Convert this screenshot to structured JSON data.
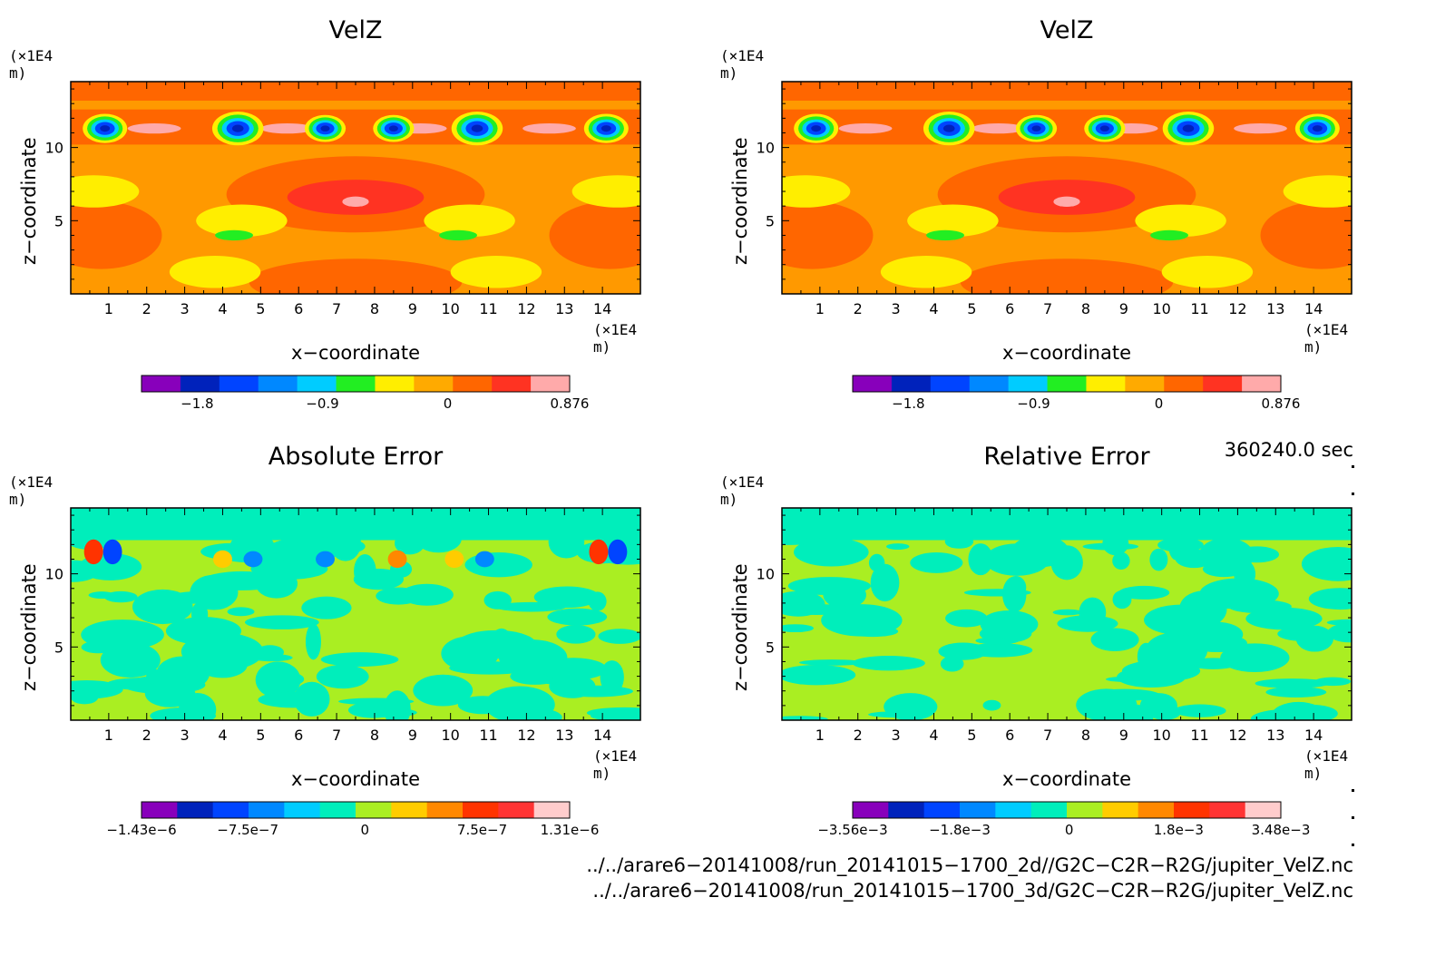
{
  "panels": [
    {
      "title": "VelZ",
      "xlabel": "x−coordinate",
      "ylabel": "z−coordinate",
      "xunit": "(×1E4 m)",
      "yunit": "(×1E4 m)",
      "bg": "#ff9900",
      "cbar": {
        "colors": [
          "#8800bb",
          "#0022bb",
          "#0044ff",
          "#0088ff",
          "#00ccff",
          "#22ee22",
          "#ffee00",
          "#ffaa00",
          "#ff6600",
          "#ff3322",
          "#ffaaaa"
        ],
        "labels": [
          "−1.8",
          "−0.9",
          "0",
          "0.876"
        ]
      }
    },
    {
      "title": "VelZ",
      "xlabel": "x−coordinate",
      "ylabel": "z−coordinate",
      "xunit": "(×1E4 m)",
      "yunit": "(×1E4 m)",
      "bg": "#ff9900",
      "cbar": {
        "colors": [
          "#8800bb",
          "#0022bb",
          "#0044ff",
          "#0088ff",
          "#00ccff",
          "#22ee22",
          "#ffee00",
          "#ffaa00",
          "#ff6600",
          "#ff3322",
          "#ffaaaa"
        ],
        "labels": [
          "−1.8",
          "−0.9",
          "0",
          "0.876"
        ]
      }
    },
    {
      "title": "Absolute Error",
      "xlabel": "x−coordinate",
      "ylabel": "z−coordinate",
      "xunit": "(×1E4 m)",
      "yunit": "(×1E4 m)",
      "bg": "#aaee22",
      "cbar": {
        "colors": [
          "#8800bb",
          "#0022bb",
          "#0044ff",
          "#0088ff",
          "#00ccff",
          "#00eebb",
          "#aaee22",
          "#ffcc00",
          "#ff8800",
          "#ff3300",
          "#ff3333",
          "#ffcccc"
        ],
        "labels": [
          "−1.43e−6",
          "−7.5e−7",
          "0",
          "7.5e−7",
          "1.31e−6"
        ]
      }
    },
    {
      "title": "Relative Error",
      "xlabel": "x−coordinate",
      "ylabel": "z−coordinate",
      "xunit": "(×1E4 m)",
      "yunit": "(×1E4 m)",
      "bg": "#aaee22",
      "cbar": {
        "colors": [
          "#8800bb",
          "#0022bb",
          "#0044ff",
          "#0088ff",
          "#00ccff",
          "#00eebb",
          "#aaee22",
          "#ffcc00",
          "#ff8800",
          "#ff3300",
          "#ff3333",
          "#ffcccc"
        ],
        "labels": [
          "−3.56e−3",
          "−1.8e−3",
          "0",
          "1.8e−3",
          "3.48e−3"
        ]
      }
    }
  ],
  "time_label": "360240.0 sec",
  "file_paths": [
    "../../arare6−20141008/run_20141015−1700_2d//G2C−C2R−R2G/jupiter_VelZ.nc",
    "../../arare6−20141008/run_20141015−1700_3d/G2C−C2R−R2G/jupiter_VelZ.nc"
  ],
  "chart_data": [
    {
      "type": "heatmap",
      "title": "VelZ",
      "xlabel": "x−coordinate",
      "ylabel": "z−coordinate",
      "xunit": "(×1E4 m)",
      "yunit": "(×1E4 m)",
      "xlim": [
        0,
        15
      ],
      "ylim": [
        0,
        14.5
      ],
      "xticks": [
        "1",
        "2",
        "3",
        "4",
        "5",
        "6",
        "7",
        "8",
        "9",
        "10",
        "11",
        "12",
        "13",
        "14"
      ],
      "yticks": [
        "5",
        "10"
      ],
      "colorbar": {
        "min": -2.2,
        "max": 0.876,
        "ticks": [
          "−1.8",
          "−0.9",
          "0",
          "0.876"
        ]
      }
    },
    {
      "type": "heatmap",
      "title": "VelZ",
      "xlabel": "x−coordinate",
      "ylabel": "z−coordinate",
      "xunit": "(×1E4 m)",
      "yunit": "(×1E4 m)",
      "xlim": [
        0,
        15
      ],
      "ylim": [
        0,
        14.5
      ],
      "xticks": [
        "1",
        "2",
        "3",
        "4",
        "5",
        "6",
        "7",
        "8",
        "9",
        "10",
        "11",
        "12",
        "13",
        "14"
      ],
      "yticks": [
        "5",
        "10"
      ],
      "colorbar": {
        "min": -2.2,
        "max": 0.876,
        "ticks": [
          "−1.8",
          "−0.9",
          "0",
          "0.876"
        ]
      }
    },
    {
      "type": "heatmap",
      "title": "Absolute Error",
      "xlabel": "x−coordinate",
      "ylabel": "z−coordinate",
      "xunit": "(×1E4 m)",
      "yunit": "(×1E4 m)",
      "xlim": [
        0,
        15
      ],
      "ylim": [
        0,
        14.5
      ],
      "xticks": [
        "1",
        "2",
        "3",
        "4",
        "5",
        "6",
        "7",
        "8",
        "9",
        "10",
        "11",
        "12",
        "13",
        "14"
      ],
      "yticks": [
        "5",
        "10"
      ],
      "colorbar": {
        "min": -1.43e-06,
        "max": 1.31e-06,
        "ticks": [
          "−1.43e−6",
          "−7.5e−7",
          "0",
          "7.5e−7",
          "1.31e−6"
        ]
      }
    },
    {
      "type": "heatmap",
      "title": "Relative Error",
      "xlabel": "x−coordinate",
      "ylabel": "z−coordinate",
      "xunit": "(×1E4 m)",
      "yunit": "(×1E4 m)",
      "xlim": [
        0,
        15
      ],
      "ylim": [
        0,
        14.5
      ],
      "xticks": [
        "1",
        "2",
        "3",
        "4",
        "5",
        "6",
        "7",
        "8",
        "9",
        "10",
        "11",
        "12",
        "13",
        "14"
      ],
      "yticks": [
        "5",
        "10"
      ],
      "colorbar": {
        "min": -0.00356,
        "max": 0.00348,
        "ticks": [
          "−3.56e−3",
          "−1.8e−3",
          "0",
          "1.8e−3",
          "3.48e−3"
        ]
      }
    }
  ]
}
